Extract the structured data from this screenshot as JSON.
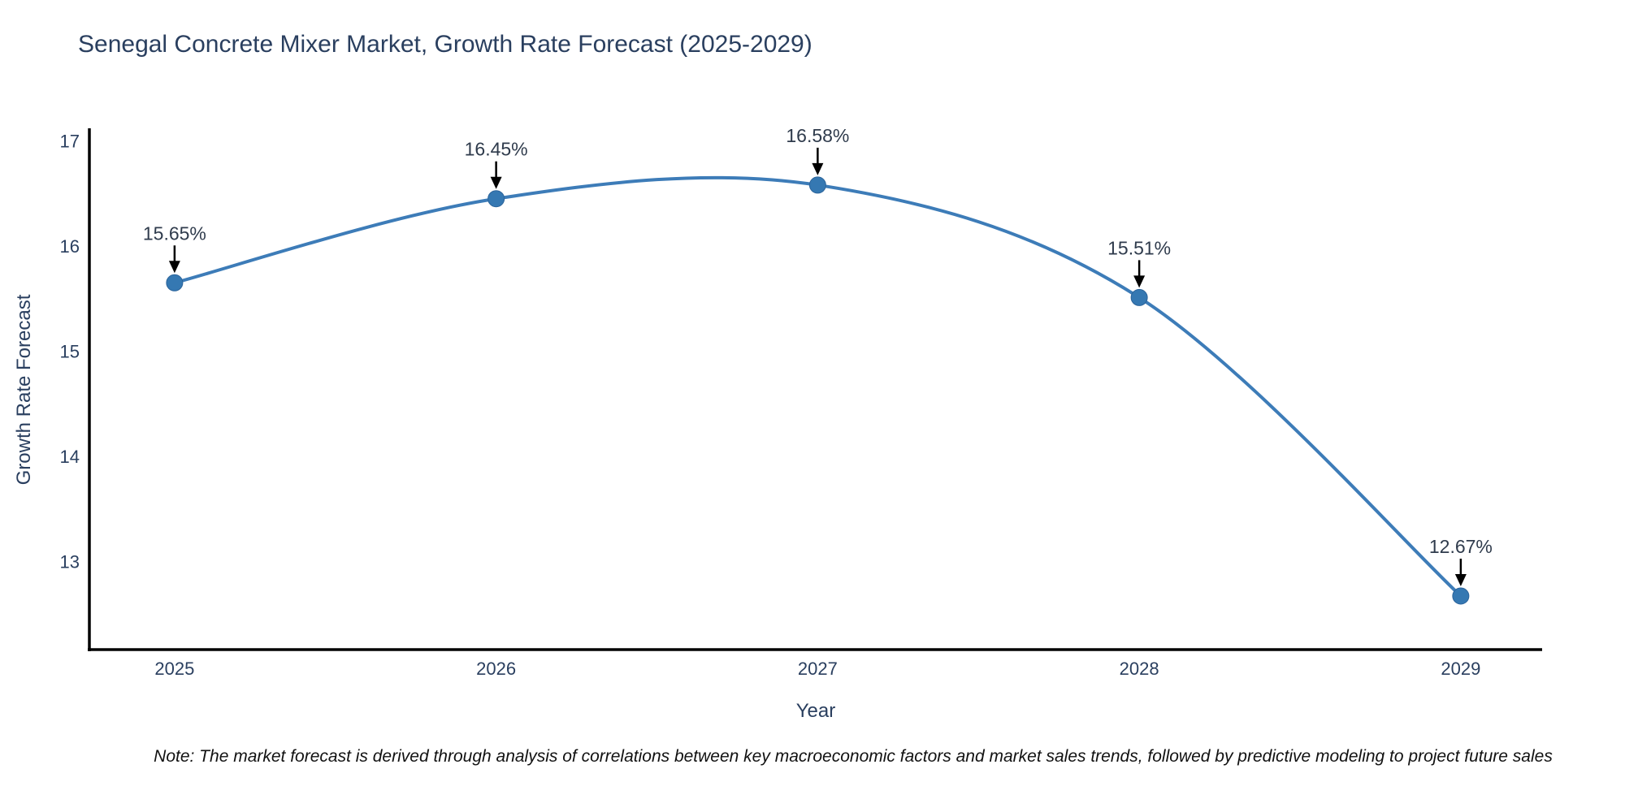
{
  "title": "Senegal Concrete Mixer Market, Growth Rate Forecast (2025-2029)",
  "note": "Note: The market forecast is derived through analysis of correlations between key macroeconomic factors and market sales trends, followed by predictive modeling to project future sales",
  "chart_data": {
    "type": "line",
    "title": "Senegal Concrete Mixer Market, Growth Rate Forecast (2025-2029)",
    "xlabel": "Year",
    "ylabel": "Growth Rate Forecast",
    "categories": [
      "2025",
      "2026",
      "2027",
      "2028",
      "2029"
    ],
    "values": [
      15.65,
      16.45,
      16.58,
      15.51,
      12.67
    ],
    "point_labels": [
      "15.65%",
      "16.45%",
      "16.58%",
      "15.51%",
      "12.67%"
    ],
    "yticks": [
      13,
      14,
      15,
      16,
      17
    ],
    "xlim": [
      2024.735,
      2029.253
    ],
    "ylim": [
      12.16,
      17.12
    ],
    "line_shape": "spline",
    "grid": false,
    "legend_visible": false,
    "colors": {
      "line": "#3d7cb8",
      "marker": "#3578b2",
      "marker_edge": "#2b639a",
      "axis": "#000000",
      "tick_text": "#2a3f5f",
      "annotation_text": "#2f3b4c",
      "arrow": "#000000"
    }
  }
}
